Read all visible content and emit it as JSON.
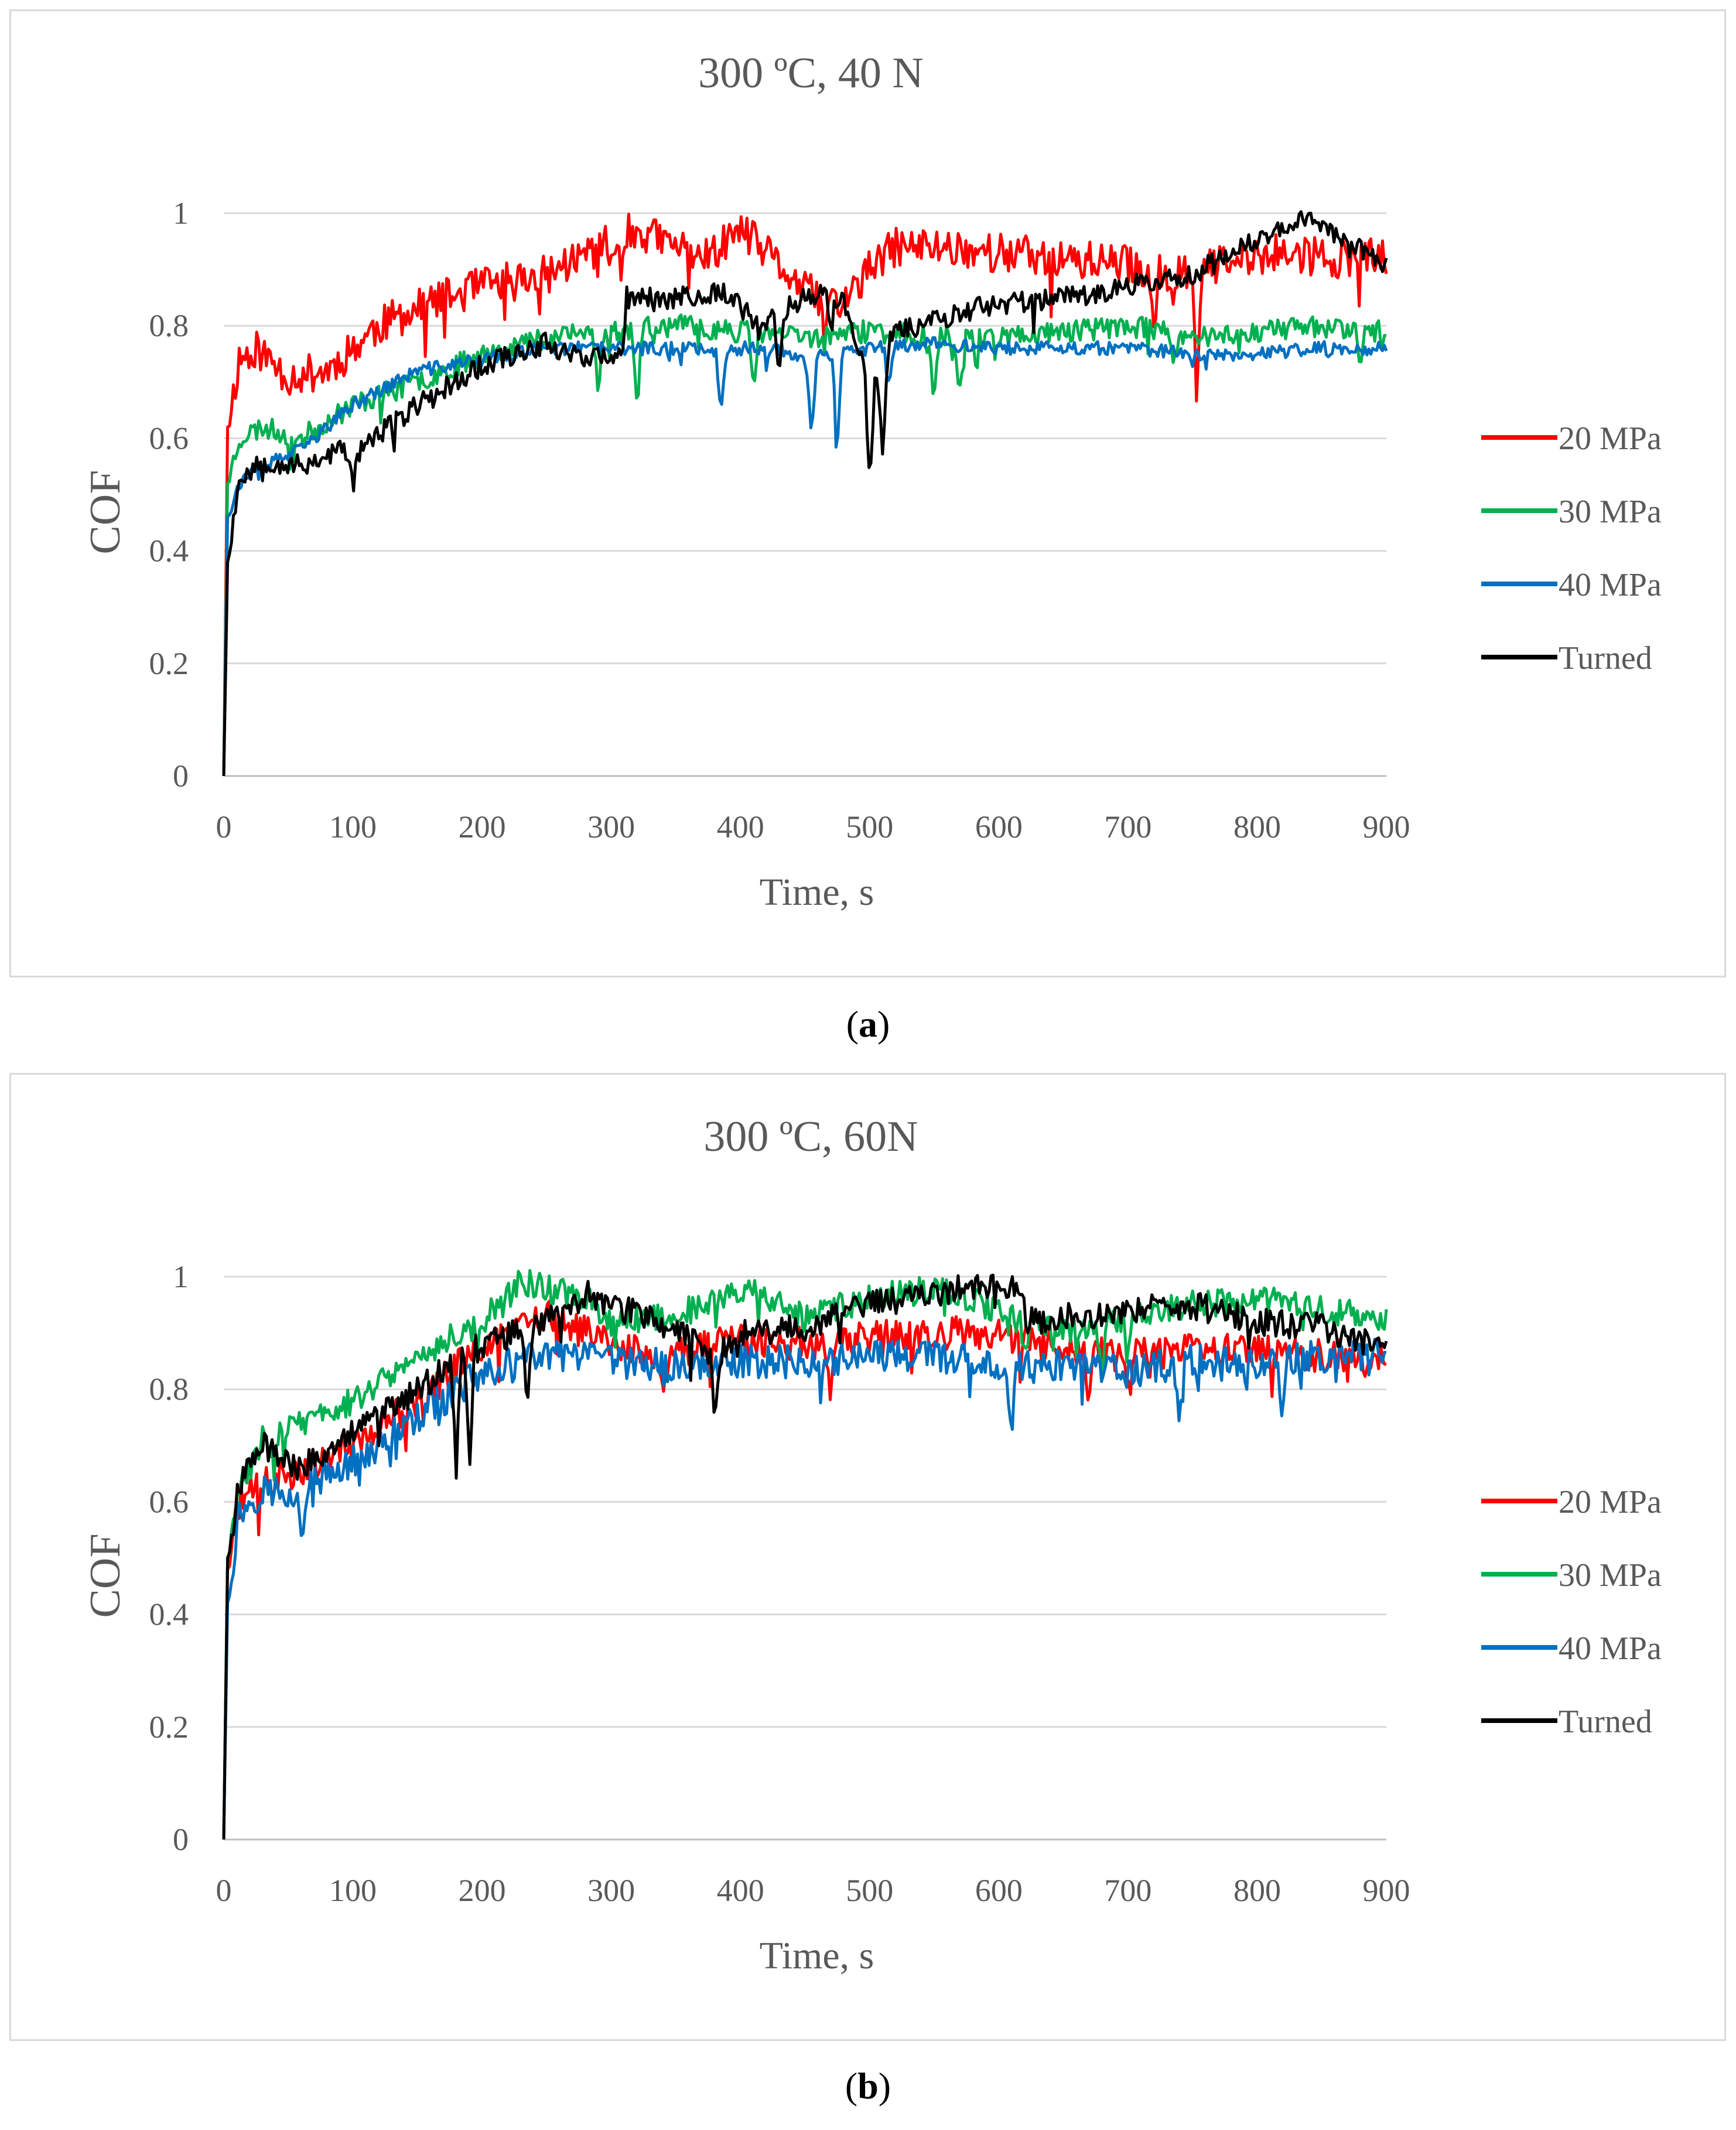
{
  "charts": [
    {
      "id": "a",
      "caption": {
        "open": "(",
        "letter": "a",
        "close": ")"
      },
      "chart_data": {
        "type": "line",
        "title": "300 ºC, 40 N",
        "xlabel": "Time, s",
        "ylabel": "COF",
        "xlim": [
          0,
          900
        ],
        "ylim": [
          0,
          1.0
        ],
        "xticks": [
          "0",
          "100",
          "200",
          "300",
          "400",
          "500",
          "600",
          "700",
          "800",
          "900"
        ],
        "yticks": [
          "0",
          "0.2",
          "0.4",
          "0.6",
          "0.8",
          "1"
        ],
        "grid": true,
        "legend_position": "right",
        "series": [
          {
            "name": "20 MPa",
            "color": "#ff0000",
            "seed": 11,
            "noise": 0.035,
            "spikes": [
              [
                300,
                0.05
              ],
              [
                370,
                0.06
              ],
              [
                465,
                0.08
              ],
              [
                753,
                0.22
              ],
              [
                720,
                0.08
              ]
            ],
            "x": [
              0,
              3,
              12,
              25,
              50,
              80,
              100,
              120,
              160,
              200,
              250,
              280,
              300,
              320,
              350,
              380,
              400,
              420,
              450,
              480,
              500,
              520,
              560,
              600,
              650,
              700,
              720,
              750,
              780,
              820,
              860,
              900
            ],
            "y": [
              0,
              0.62,
              0.74,
              0.76,
              0.71,
              0.72,
              0.76,
              0.8,
              0.84,
              0.87,
              0.89,
              0.93,
              0.95,
              0.97,
              0.94,
              0.93,
              0.97,
              0.93,
              0.86,
              0.84,
              0.9,
              0.94,
              0.94,
              0.93,
              0.92,
              0.91,
              0.89,
              0.9,
              0.91,
              0.93,
              0.92,
              0.92
            ]
          },
          {
            "name": "30 MPa",
            "color": "#00b050",
            "seed": 23,
            "noise": 0.02,
            "spikes": [
              [
                290,
                0.1
              ],
              [
                320,
                0.14
              ],
              [
                410,
                0.1
              ],
              [
                550,
                0.12
              ],
              [
                570,
                0.1
              ],
              [
                735,
                0.07
              ],
              [
                880,
                0.06
              ]
            ],
            "x": [
              0,
              3,
              12,
              30,
              60,
              100,
              150,
              200,
              250,
              300,
              350,
              400,
              450,
              500,
              550,
              600,
              650,
              700,
              750,
              800,
              850,
              900
            ],
            "y": [
              0,
              0.52,
              0.6,
              0.62,
              0.6,
              0.66,
              0.7,
              0.75,
              0.78,
              0.79,
              0.8,
              0.79,
              0.78,
              0.79,
              0.78,
              0.78,
              0.79,
              0.8,
              0.78,
              0.79,
              0.8,
              0.79
            ]
          },
          {
            "name": "40 MPa",
            "color": "#0070c0",
            "seed": 37,
            "noise": 0.012,
            "spikes": [
              [
                385,
                0.12
              ],
              [
                455,
                0.15
              ],
              [
                475,
                0.17
              ],
              [
                515,
                0.08
              ],
              [
                750,
                0.02
              ]
            ],
            "x": [
              0,
              3,
              12,
              30,
              60,
              100,
              150,
              200,
              250,
              300,
              350,
              400,
              430,
              450,
              500,
              550,
              600,
              650,
              700,
              750,
              800,
              850,
              900
            ],
            "y": [
              0,
              0.46,
              0.52,
              0.55,
              0.58,
              0.66,
              0.72,
              0.74,
              0.76,
              0.76,
              0.76,
              0.76,
              0.76,
              0.74,
              0.76,
              0.77,
              0.76,
              0.76,
              0.76,
              0.75,
              0.75,
              0.76,
              0.76
            ]
          },
          {
            "name": "Turned",
            "color": "#000000",
            "seed": 53,
            "noise": 0.02,
            "spikes": [
              [
                100,
                0.06
              ],
              [
                430,
                0.1
              ],
              [
                470,
                0.06
              ],
              [
                500,
                0.2
              ],
              [
                510,
                0.18
              ]
            ],
            "x": [
              0,
              3,
              12,
              30,
              60,
              90,
              100,
              150,
              200,
              250,
              270,
              310,
              311,
              360,
              390,
              400,
              420,
              440,
              460,
              480,
              500,
              520,
              550,
              600,
              650,
              700,
              750,
              780,
              810,
              840,
              870,
              900
            ],
            "y": [
              0,
              0.38,
              0.53,
              0.56,
              0.55,
              0.58,
              0.57,
              0.66,
              0.73,
              0.77,
              0.75,
              0.74,
              0.85,
              0.85,
              0.86,
              0.84,
              0.8,
              0.84,
              0.86,
              0.84,
              0.7,
              0.79,
              0.81,
              0.84,
              0.85,
              0.87,
              0.89,
              0.93,
              0.96,
              1.0,
              0.94,
              0.92
            ]
          }
        ]
      }
    },
    {
      "id": "b",
      "caption": {
        "open": "(",
        "letter": "b",
        "close": ")"
      },
      "chart_data": {
        "type": "line",
        "title": "300 ºC, 60N",
        "xlabel": "Time, s",
        "ylabel": "COF",
        "xlim": [
          0,
          900
        ],
        "ylim": [
          0,
          1.0
        ],
        "xticks": [
          "0",
          "100",
          "200",
          "300",
          "400",
          "500",
          "600",
          "700",
          "800",
          "900"
        ],
        "yticks": [
          "0",
          "0.2",
          "0.4",
          "0.6",
          "0.8",
          "1"
        ],
        "grid": true,
        "legend_position": "right",
        "series": [
          {
            "name": "20 MPa",
            "color": "#ff0000",
            "seed": 71,
            "noise": 0.03,
            "spikes": [
              [
                340,
                0.1
              ],
              [
                470,
                0.1
              ],
              [
                670,
                0.08
              ],
              [
                700,
                0.08
              ]
            ],
            "x": [
              0,
              3,
              12,
              30,
              60,
              100,
              150,
              200,
              250,
              300,
              350,
              400,
              450,
              500,
              550,
              600,
              650,
              700,
              750,
              800,
              850,
              900
            ],
            "y": [
              0,
              0.48,
              0.6,
              0.63,
              0.66,
              0.7,
              0.78,
              0.88,
              0.93,
              0.88,
              0.86,
              0.89,
              0.88,
              0.89,
              0.9,
              0.9,
              0.87,
              0.86,
              0.87,
              0.87,
              0.86,
              0.86
            ]
          },
          {
            "name": "30 MPa",
            "color": "#00b050",
            "seed": 83,
            "noise": 0.025,
            "spikes": [
              [
                620,
                0.08
              ],
              [
                680,
                0.1
              ],
              [
                700,
                0.08
              ]
            ],
            "x": [
              0,
              3,
              12,
              30,
              60,
              100,
              150,
              200,
              230,
              250,
              280,
              300,
              350,
              400,
              450,
              500,
              550,
              600,
              650,
              700,
              750,
              800,
              850,
              900
            ],
            "y": [
              0,
              0.5,
              0.62,
              0.71,
              0.74,
              0.78,
              0.86,
              0.92,
              0.99,
              0.98,
              0.96,
              0.92,
              0.93,
              0.98,
              0.93,
              0.96,
              0.98,
              0.94,
              0.9,
              0.93,
              0.95,
              0.96,
              0.94,
              0.93
            ]
          },
          {
            "name": "40 MPa",
            "color": "#0070c0",
            "seed": 97,
            "noise": 0.03,
            "spikes": [
              [
                60,
                0.1
              ],
              [
                610,
                0.1
              ],
              [
                740,
                0.12
              ],
              [
                820,
                0.08
              ]
            ],
            "x": [
              0,
              3,
              12,
              30,
              60,
              100,
              150,
              200,
              250,
              300,
              350,
              400,
              450,
              500,
              550,
              600,
              650,
              700,
              750,
              800,
              850,
              900
            ],
            "y": [
              0,
              0.42,
              0.58,
              0.62,
              0.62,
              0.67,
              0.75,
              0.83,
              0.86,
              0.85,
              0.84,
              0.85,
              0.85,
              0.86,
              0.86,
              0.84,
              0.84,
              0.83,
              0.85,
              0.84,
              0.86,
              0.86
            ]
          },
          {
            "name": "Turned",
            "color": "#000000",
            "seed": 109,
            "noise": 0.025,
            "spikes": [
              [
                180,
                0.15
              ],
              [
                190,
                0.2
              ],
              [
                235,
                0.12
              ],
              [
                380,
                0.08
              ]
            ],
            "x": [
              0,
              3,
              12,
              30,
              60,
              100,
              150,
              200,
              250,
              280,
              300,
              350,
              380,
              400,
              450,
              500,
              550,
              600,
              620,
              621,
              650,
              700,
              750,
              800,
              850,
              900
            ],
            "y": [
              0,
              0.5,
              0.63,
              0.7,
              0.66,
              0.72,
              0.8,
              0.88,
              0.92,
              0.97,
              0.95,
              0.91,
              0.85,
              0.9,
              0.91,
              0.95,
              0.97,
              0.99,
              0.98,
              0.92,
              0.93,
              0.94,
              0.95,
              0.92,
              0.91,
              0.87
            ]
          }
        ]
      }
    }
  ]
}
